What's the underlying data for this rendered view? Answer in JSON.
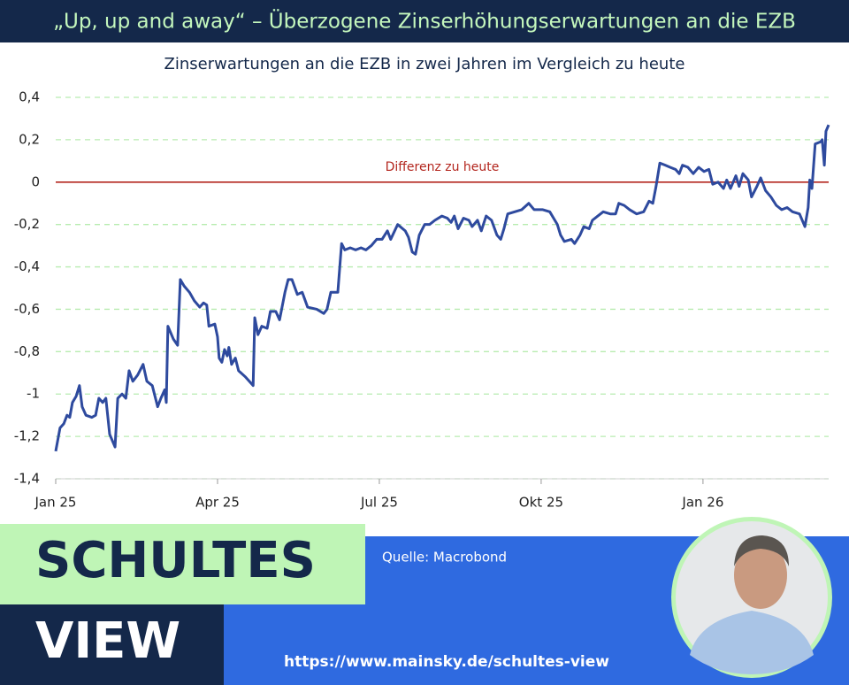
{
  "chart_data": {
    "type": "line",
    "title": "„Up, up and away“ – Überzogene Zinserhöhungserwartungen an die EZB",
    "subtitle": "Zinserwartungen an die EZB in zwei Jahren im Vergleich zu heute",
    "reference_line": {
      "value": 0,
      "label": "Differenz zu heute",
      "color": "#b3261e"
    },
    "color": "#2e4a9e",
    "grid": true,
    "grid_color": "#b8ecb0",
    "xlim": [
      0,
      14.33
    ],
    "xticks": [
      {
        "value": 0,
        "label": "Jan 25"
      },
      {
        "value": 3,
        "label": "Apr 25"
      },
      {
        "value": 6,
        "label": "Jul 25"
      },
      {
        "value": 9,
        "label": "Okt 25"
      },
      {
        "value": 12,
        "label": "Jan 26"
      }
    ],
    "ylim": [
      -1.4,
      0.4
    ],
    "yticks": [
      {
        "value": -1.4,
        "label": "-1,4"
      },
      {
        "value": -1.2,
        "label": "-1,2"
      },
      -1,
      {
        "value": -0.8,
        "label": "-0,8"
      },
      {
        "value": -0.6,
        "label": "-0,6"
      },
      {
        "value": -0.4,
        "label": "-0,4"
      },
      {
        "value": -0.2,
        "label": "-0,2"
      },
      0,
      {
        "value": 0.2,
        "label": "0,2"
      },
      {
        "value": 0.4,
        "label": "0,4"
      }
    ],
    "x": [
      0,
      0.08,
      0.15,
      0.21,
      0.26,
      0.31,
      0.38,
      0.44,
      0.49,
      0.56,
      0.67,
      0.74,
      0.8,
      0.87,
      0.93,
      1.0,
      1.1,
      1.15,
      1.23,
      1.3,
      1.36,
      1.43,
      1.52,
      1.62,
      1.69,
      1.79,
      1.89,
      1.95,
      2.02,
      2.05,
      2.08,
      2.18,
      2.26,
      2.31,
      2.38,
      2.48,
      2.57,
      2.67,
      2.74,
      2.8,
      2.84,
      2.95,
      3.0,
      3.03,
      3.08,
      3.13,
      3.18,
      3.21,
      3.26,
      3.33,
      3.39,
      3.52,
      3.66,
      3.69,
      3.75,
      3.82,
      3.92,
      3.98,
      4.08,
      4.15,
      4.25,
      4.31,
      4.38,
      4.48,
      4.57,
      4.67,
      4.84,
      4.97,
      5.03,
      5.1,
      5.23,
      5.3,
      5.36,
      5.46,
      5.56,
      5.66,
      5.75,
      5.85,
      5.95,
      6.05,
      6.15,
      6.21,
      6.34,
      6.48,
      6.54,
      6.61,
      6.67,
      6.74,
      6.84,
      6.93,
      7.03,
      7.16,
      7.26,
      7.33,
      7.39,
      7.46,
      7.56,
      7.66,
      7.72,
      7.82,
      7.89,
      7.98,
      8.08,
      8.18,
      8.25,
      8.31,
      8.38,
      8.51,
      8.64,
      8.77,
      8.87,
      9.03,
      9.16,
      9.23,
      9.3,
      9.36,
      9.43,
      9.56,
      9.62,
      9.72,
      9.79,
      9.89,
      9.95,
      10.05,
      10.15,
      10.28,
      10.38,
      10.44,
      10.54,
      10.64,
      10.77,
      10.9,
      11.0,
      11.07,
      11.13,
      11.2,
      11.3,
      11.39,
      11.49,
      11.56,
      11.62,
      11.72,
      11.82,
      11.92,
      12.02,
      12.11,
      12.18,
      12.28,
      12.38,
      12.44,
      12.51,
      12.61,
      12.67,
      12.74,
      12.84,
      12.9,
      13.0,
      13.07,
      13.16,
      13.26,
      13.36,
      13.46,
      13.56,
      13.66,
      13.79,
      13.89,
      13.95,
      13.98,
      14.02,
      14.08,
      14.18,
      14.21,
      14.25,
      14.28,
      14.33
    ],
    "values": [
      -1.27,
      -1.16,
      -1.14,
      -1.1,
      -1.11,
      -1.04,
      -1.01,
      -0.96,
      -1.06,
      -1.1,
      -1.11,
      -1.1,
      -1.02,
      -1.04,
      -1.02,
      -1.19,
      -1.25,
      -1.02,
      -1.0,
      -1.02,
      -0.89,
      -0.94,
      -0.91,
      -0.86,
      -0.94,
      -0.96,
      -1.06,
      -1.02,
      -0.98,
      -1.04,
      -0.68,
      -0.74,
      -0.77,
      -0.46,
      -0.49,
      -0.52,
      -0.56,
      -0.59,
      -0.57,
      -0.58,
      -0.68,
      -0.67,
      -0.73,
      -0.83,
      -0.85,
      -0.79,
      -0.82,
      -0.78,
      -0.86,
      -0.83,
      -0.89,
      -0.92,
      -0.96,
      -0.64,
      -0.72,
      -0.68,
      -0.69,
      -0.61,
      -0.61,
      -0.65,
      -0.52,
      -0.46,
      -0.46,
      -0.53,
      -0.52,
      -0.59,
      -0.6,
      -0.62,
      -0.6,
      -0.52,
      -0.52,
      -0.29,
      -0.32,
      -0.31,
      -0.32,
      -0.31,
      -0.32,
      -0.3,
      -0.27,
      -0.27,
      -0.23,
      -0.27,
      -0.2,
      -0.23,
      -0.26,
      -0.33,
      -0.34,
      -0.25,
      -0.2,
      -0.2,
      -0.18,
      -0.16,
      -0.17,
      -0.19,
      -0.16,
      -0.22,
      -0.17,
      -0.18,
      -0.21,
      -0.18,
      -0.23,
      -0.16,
      -0.18,
      -0.25,
      -0.27,
      -0.22,
      -0.15,
      -0.14,
      -0.13,
      -0.1,
      -0.13,
      -0.13,
      -0.14,
      -0.17,
      -0.2,
      -0.25,
      -0.28,
      -0.27,
      -0.29,
      -0.25,
      -0.21,
      -0.22,
      -0.18,
      -0.16,
      -0.14,
      -0.15,
      -0.15,
      -0.1,
      -0.11,
      -0.13,
      -0.15,
      -0.14,
      -0.09,
      -0.1,
      -0.02,
      0.09,
      0.08,
      0.07,
      0.06,
      0.04,
      0.08,
      0.07,
      0.04,
      0.07,
      0.05,
      0.06,
      -0.01,
      0.0,
      -0.03,
      0.01,
      -0.03,
      0.03,
      -0.02,
      0.04,
      0.01,
      -0.07,
      -0.02,
      0.02,
      -0.04,
      -0.07,
      -0.11,
      -0.13,
      -0.12,
      -0.14,
      -0.15,
      -0.21,
      -0.12,
      0.01,
      -0.03,
      0.18,
      0.19,
      0.2,
      0.08,
      0.24,
      0.27
    ]
  },
  "branding": {
    "line1": "SCHULTES",
    "line2": "VIEW",
    "source": "Quelle: Macrobond",
    "url": "https://www.mainsky.de/schultes-view"
  }
}
